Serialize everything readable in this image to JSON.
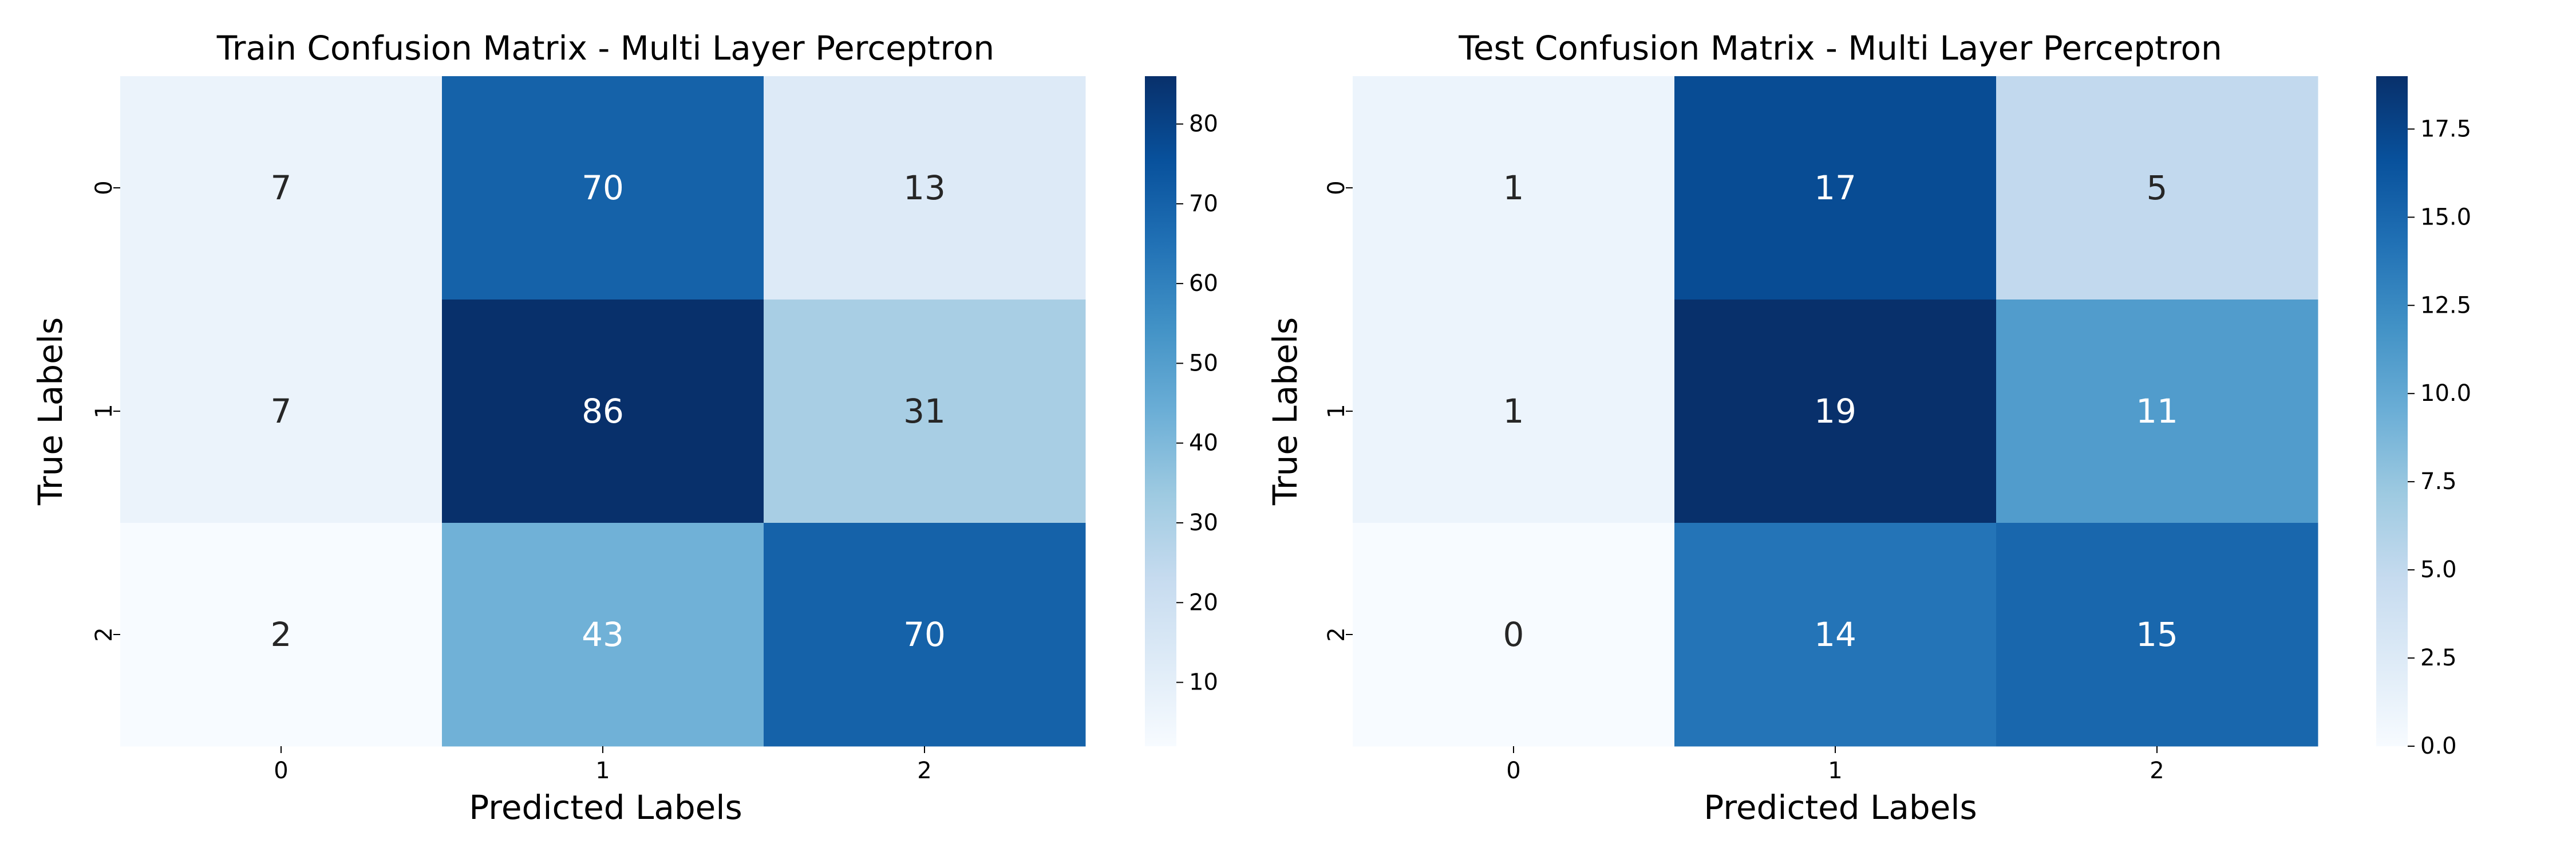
{
  "chart_data": [
    {
      "type": "heatmap",
      "title": "Train Confusion Matrix - Multi Layer Perceptron",
      "xlabel": "Predicted Labels",
      "ylabel": "True Labels",
      "x_categories": [
        "0",
        "1",
        "2"
      ],
      "y_categories": [
        "0",
        "1",
        "2"
      ],
      "values": [
        [
          7,
          70,
          13
        ],
        [
          7,
          86,
          31
        ],
        [
          2,
          43,
          70
        ]
      ],
      "colormap": "Blues",
      "color_range": [
        2,
        86
      ],
      "colorbar_ticks": [
        10,
        20,
        30,
        40,
        50,
        60,
        70,
        80
      ],
      "colorbar_tick_labels": [
        "10",
        "20",
        "30",
        "40",
        "50",
        "60",
        "70",
        "80"
      ]
    },
    {
      "type": "heatmap",
      "title": "Test Confusion Matrix - Multi Layer Perceptron",
      "xlabel": "Predicted Labels",
      "ylabel": "True Labels",
      "x_categories": [
        "0",
        "1",
        "2"
      ],
      "y_categories": [
        "0",
        "1",
        "2"
      ],
      "values": [
        [
          1,
          17,
          5
        ],
        [
          1,
          19,
          11
        ],
        [
          0,
          14,
          15
        ]
      ],
      "colormap": "Blues",
      "color_range": [
        0,
        19
      ],
      "colorbar_ticks": [
        0,
        2.5,
        5,
        7.5,
        10,
        12.5,
        15,
        17.5
      ],
      "colorbar_tick_labels": [
        "0.0",
        "2.5",
        "5.0",
        "7.5",
        "10.0",
        "12.5",
        "15.0",
        "17.5"
      ]
    }
  ]
}
